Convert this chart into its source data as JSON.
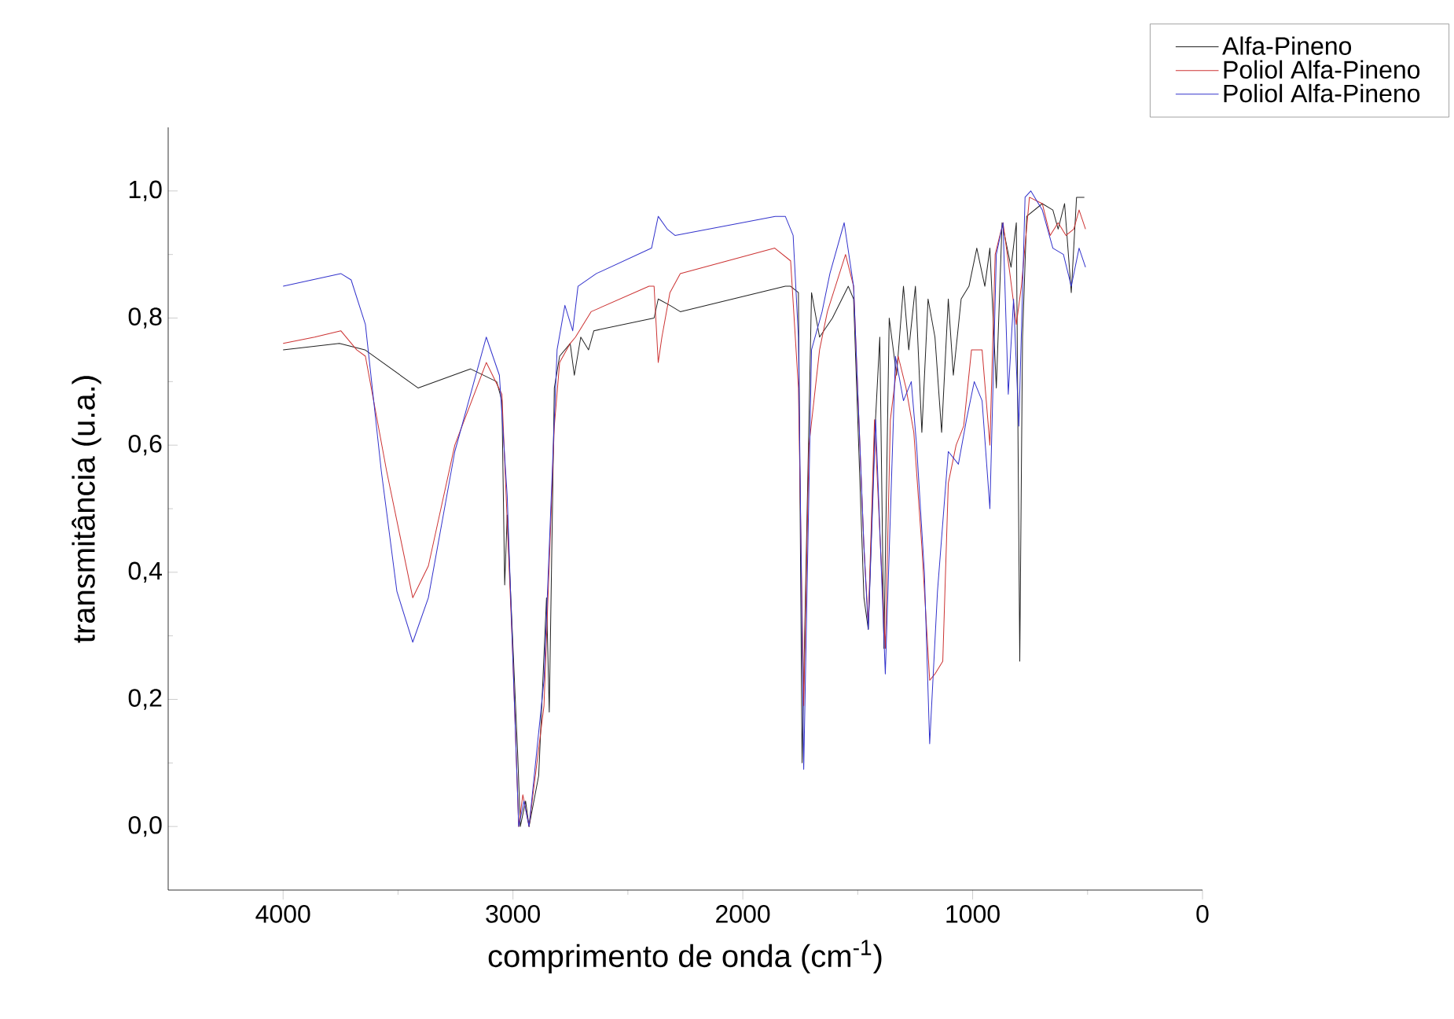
{
  "chart_data": {
    "type": "line",
    "xlabel": "comprimento de onda (cm$^{-1}$)",
    "ylabel": "transmitância (u.a.)",
    "xlim": [
      4500,
      0
    ],
    "ylim": [
      -0.1,
      1.1
    ],
    "xticks": [
      4000,
      3000,
      2000,
      1000,
      0
    ],
    "yticks": [
      {
        "value": 0.0,
        "label": "0,0"
      },
      {
        "value": 0.2,
        "label": "0,2"
      },
      {
        "value": 0.4,
        "label": "0,4"
      },
      {
        "value": 0.6,
        "label": "0,6"
      },
      {
        "value": 0.8,
        "label": "0,8"
      },
      {
        "value": 1.0,
        "label": "1,0"
      }
    ],
    "grid": false,
    "legend": "top right",
    "marker": "none",
    "line_style": "solid",
    "series": [
      {
        "name": "Alfa-Pineno",
        "color": "#222222",
        "x": [
          4000,
          3755,
          3644,
          3413,
          3185,
          3071,
          3048,
          3036,
          3025,
          2979,
          2968,
          2945,
          2930,
          2888,
          2854,
          2842,
          2820,
          2797,
          2751,
          2733,
          2705,
          2671,
          2648,
          2386,
          2368,
          2317,
          2272,
          1815,
          1792,
          1758,
          1742,
          1701,
          1666,
          1610,
          1541,
          1518,
          1473,
          1454,
          1427,
          1404,
          1386,
          1363,
          1331,
          1301,
          1278,
          1249,
          1221,
          1194,
          1164,
          1135,
          1106,
          1084,
          1050,
          1016,
          982,
          947,
          925,
          897,
          872,
          833,
          810,
          795,
          783,
          765,
          697,
          651,
          628,
          600,
          571,
          548,
          514
        ],
        "values": [
          0.75,
          0.76,
          0.75,
          0.69,
          0.72,
          0.7,
          0.67,
          0.38,
          0.49,
          0.11,
          0.0,
          0.04,
          0.0,
          0.08,
          0.36,
          0.18,
          0.69,
          0.74,
          0.76,
          0.71,
          0.77,
          0.75,
          0.78,
          0.8,
          0.83,
          0.82,
          0.81,
          0.85,
          0.85,
          0.84,
          0.1,
          0.84,
          0.77,
          0.8,
          0.85,
          0.83,
          0.36,
          0.31,
          0.61,
          0.77,
          0.28,
          0.8,
          0.71,
          0.85,
          0.75,
          0.85,
          0.62,
          0.83,
          0.77,
          0.62,
          0.83,
          0.71,
          0.83,
          0.85,
          0.91,
          0.85,
          0.91,
          0.69,
          0.95,
          0.88,
          0.95,
          0.26,
          0.77,
          0.96,
          0.98,
          0.97,
          0.94,
          0.98,
          0.84,
          0.99,
          0.99
        ]
      },
      {
        "name": "Poliol Alfa-Pineno",
        "color": "#cc3333",
        "x": [
          4000,
          3863,
          3749,
          3680,
          3642,
          3550,
          3436,
          3368,
          3253,
          3116,
          3048,
          3002,
          2975,
          2957,
          2930,
          2865,
          2820,
          2797,
          2751,
          2728,
          2660,
          2408,
          2386,
          2368,
          2352,
          2317,
          2272,
          1861,
          1792,
          1758,
          1735,
          1712,
          1666,
          1632,
          1553,
          1518,
          1473,
          1454,
          1427,
          1380,
          1358,
          1324,
          1290,
          1256,
          1221,
          1187,
          1164,
          1130,
          1106,
          1072,
          1039,
          1005,
          959,
          925,
          902,
          868,
          838,
          810,
          788,
          753,
          697,
          663,
          628,
          594,
          560,
          537,
          509
        ],
        "values": [
          0.76,
          0.77,
          0.78,
          0.75,
          0.74,
          0.56,
          0.36,
          0.41,
          0.6,
          0.73,
          0.68,
          0.28,
          0.0,
          0.05,
          0.0,
          0.19,
          0.63,
          0.73,
          0.76,
          0.77,
          0.81,
          0.85,
          0.85,
          0.73,
          0.77,
          0.84,
          0.87,
          0.91,
          0.89,
          0.69,
          0.19,
          0.6,
          0.75,
          0.81,
          0.9,
          0.85,
          0.44,
          0.32,
          0.64,
          0.28,
          0.64,
          0.74,
          0.69,
          0.62,
          0.44,
          0.23,
          0.24,
          0.26,
          0.54,
          0.6,
          0.63,
          0.75,
          0.75,
          0.6,
          0.9,
          0.95,
          0.87,
          0.79,
          0.85,
          0.99,
          0.98,
          0.93,
          0.95,
          0.93,
          0.94,
          0.97,
          0.94
        ]
      },
      {
        "name": "Poliol Alfa-Pineno",
        "color": "#3333cc",
        "x": [
          4000,
          3749,
          3704,
          3642,
          3573,
          3505,
          3436,
          3368,
          3253,
          3116,
          3059,
          3025,
          2975,
          2952,
          2930,
          2865,
          2808,
          2774,
          2740,
          2717,
          2637,
          2397,
          2368,
          2329,
          2295,
          1859,
          1815,
          1781,
          1758,
          1735,
          1701,
          1655,
          1621,
          1559,
          1518,
          1473,
          1454,
          1422,
          1380,
          1336,
          1301,
          1267,
          1244,
          1210,
          1187,
          1153,
          1106,
          1062,
          1027,
          993,
          959,
          925,
          897,
          868,
          845,
          822,
          799,
          772,
          747,
          697,
          651,
          605,
          571,
          537,
          509
        ],
        "values": [
          0.85,
          0.87,
          0.86,
          0.79,
          0.56,
          0.37,
          0.29,
          0.36,
          0.59,
          0.77,
          0.71,
          0.52,
          0.0,
          0.04,
          0.0,
          0.23,
          0.75,
          0.82,
          0.78,
          0.85,
          0.87,
          0.91,
          0.96,
          0.94,
          0.93,
          0.96,
          0.96,
          0.93,
          0.77,
          0.09,
          0.75,
          0.81,
          0.87,
          0.95,
          0.85,
          0.44,
          0.31,
          0.64,
          0.24,
          0.74,
          0.67,
          0.7,
          0.6,
          0.4,
          0.13,
          0.37,
          0.59,
          0.57,
          0.64,
          0.7,
          0.67,
          0.5,
          0.9,
          0.95,
          0.68,
          0.83,
          0.63,
          0.99,
          1.0,
          0.97,
          0.91,
          0.9,
          0.85,
          0.91,
          0.88
        ]
      }
    ]
  }
}
